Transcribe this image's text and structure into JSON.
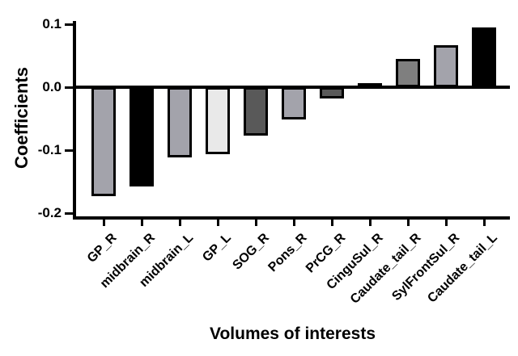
{
  "figure": {
    "background": "#ffffff"
  },
  "chart_data": {
    "type": "bar",
    "title": "",
    "xlabel": "Volumes of interests",
    "ylabel": "Coefficients",
    "ylim": [
      -0.2,
      0.1
    ],
    "ytick_labels": [
      "0.1",
      "0.0",
      "-0.1",
      "-0.2"
    ],
    "grid": false,
    "legend_position": "none",
    "categories": [
      "GP_R",
      "midbrain_R",
      "midbrain_L",
      "GP_L",
      "SOG_R",
      "Pons_R",
      "PrCG_R",
      "CinguSul_R",
      "Caudate_tail_R",
      "SylFrontSul_R",
      "Caudate_tail_L"
    ],
    "values": [
      -0.173,
      -0.158,
      -0.112,
      -0.107,
      -0.077,
      -0.051,
      -0.018,
      0.005,
      0.045,
      0.067,
      0.095
    ],
    "bar_colors": [
      "#a3a3ab",
      "#000000",
      "#a3a3ab",
      "#e9e9e9",
      "#595959",
      "#a3a3ab",
      "#595959",
      "#000000",
      "#7f7f7f",
      "#a3a3ab",
      "#000000"
    ],
    "bar_border_color": "#000000",
    "axis_color": "#000000"
  }
}
